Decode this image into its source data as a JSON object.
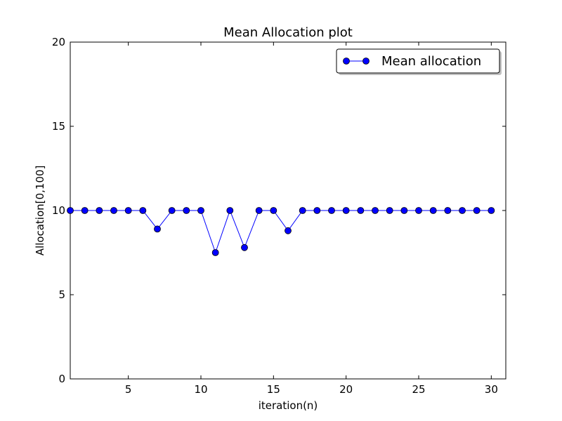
{
  "chart_data": {
    "type": "line",
    "title": "Mean Allocation plot",
    "xlabel": "iteration(n)",
    "ylabel": "Allocation[0,100]",
    "xlim": [
      1,
      31
    ],
    "ylim": [
      0,
      20
    ],
    "xticks": [
      5,
      10,
      15,
      20,
      25,
      30
    ],
    "yticks": [
      0,
      5,
      10,
      15,
      20
    ],
    "grid": false,
    "legend_position": "top-right",
    "series": [
      {
        "name": "Mean allocation",
        "color": "#0000ff",
        "marker": "circle",
        "x": [
          1,
          2,
          3,
          4,
          5,
          6,
          7,
          8,
          9,
          10,
          11,
          12,
          13,
          14,
          15,
          16,
          17,
          18,
          19,
          20,
          21,
          22,
          23,
          24,
          25,
          26,
          27,
          28,
          29,
          30
        ],
        "y": [
          10,
          10,
          10,
          10,
          10,
          10,
          8.9,
          10,
          10,
          10,
          7.5,
          10,
          7.8,
          10,
          10,
          8.8,
          10,
          10,
          10,
          10,
          10,
          10,
          10,
          10,
          10,
          10,
          10,
          10,
          10,
          10
        ]
      }
    ]
  }
}
